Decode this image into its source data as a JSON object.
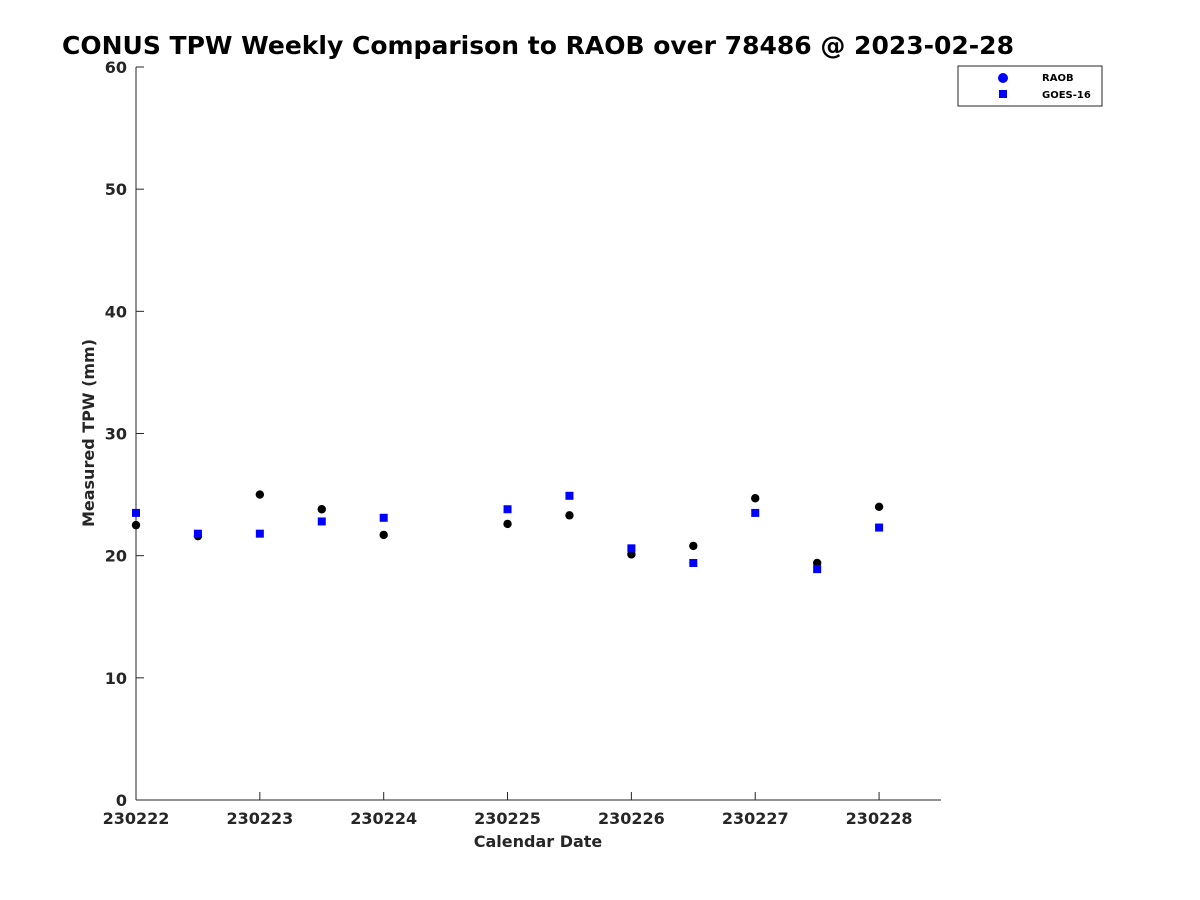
{
  "chart_data": {
    "type": "scatter",
    "title": "CONUS TPW Weekly Comparison to RAOB over 78486 @ 2023-02-28",
    "xlabel": "Calendar Date",
    "ylabel": "Measured TPW (mm)",
    "x_tick_labels": [
      "230222",
      "230223",
      "230224",
      "230225",
      "230226",
      "230227",
      "230228"
    ],
    "x_ticks": [
      0,
      1,
      2,
      3,
      4,
      5,
      6
    ],
    "xlim": [
      0,
      6.5
    ],
    "ylim": [
      0,
      60
    ],
    "y_ticks": [
      0,
      10,
      20,
      30,
      40,
      50,
      60
    ],
    "legend_position": "top-right",
    "series": [
      {
        "name": "RAOB",
        "marker": "circle",
        "color": "#000000",
        "x": [
          0,
          0.5,
          1,
          1.5,
          2,
          3,
          3.5,
          4,
          4.5,
          5,
          5.5,
          6
        ],
        "values": [
          22.5,
          21.6,
          25.0,
          23.8,
          21.7,
          22.6,
          23.3,
          20.1,
          20.8,
          24.7,
          19.4,
          24.0
        ]
      },
      {
        "name": "GOES-16",
        "marker": "square",
        "color": "#0000ff",
        "x": [
          0,
          0.5,
          1,
          1.5,
          2,
          3,
          3.5,
          4,
          4.5,
          5,
          5.5,
          6
        ],
        "values": [
          23.5,
          21.8,
          21.8,
          22.8,
          23.1,
          23.8,
          24.9,
          20.6,
          19.4,
          23.5,
          18.9,
          22.3
        ]
      }
    ],
    "legend_marker_color": "#0000ff"
  }
}
